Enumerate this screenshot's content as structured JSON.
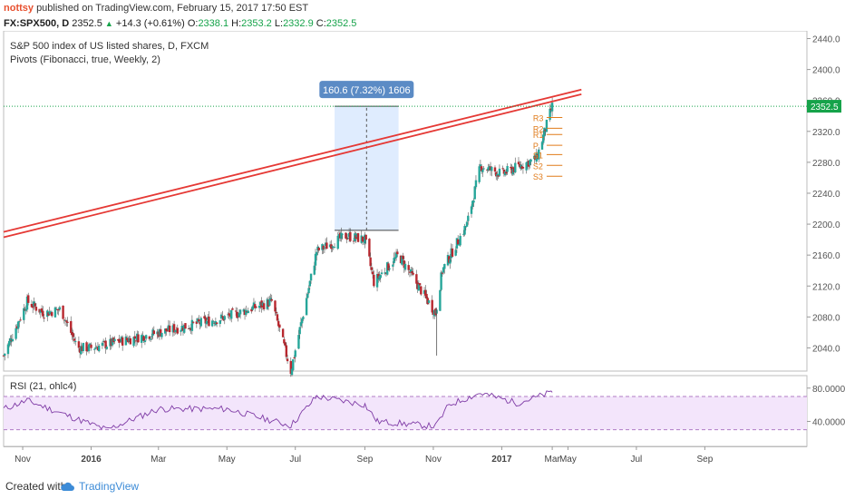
{
  "header": {
    "username": "nottsy",
    "published_text": "published on TradingView.com, February 15, 2017 17:50 EST"
  },
  "quote": {
    "symbol": "FX:SPX500, D",
    "last": "2352.5",
    "change": "+14.3 (+0.61%)",
    "open_label": "O:",
    "open": "2338.1",
    "high_label": "H:",
    "high": "2353.2",
    "low_label": "L:",
    "low": "2332.9",
    "close_label": "C:",
    "close": "2352.5"
  },
  "legend": {
    "title": "S&P 500 index of US listed shares, D, FXCM",
    "pivots": "Pivots (Fibonacci, true, Weekly, 2)",
    "rsi": "RSI (21, ohlc4)"
  },
  "measure": {
    "label": "160.6 (7.32%) 1606"
  },
  "price_axis": {
    "ticks": [
      "2440.0",
      "2400.0",
      "2360.0",
      "2320.0",
      "2280.0",
      "2240.0",
      "2200.0",
      "2160.0",
      "2120.0",
      "2080.0",
      "2040.0"
    ],
    "last_label": "2352.5"
  },
  "rsi_axis": {
    "ticks": [
      "80.0000",
      "40.0000"
    ]
  },
  "time_axis": {
    "ticks": [
      {
        "label": "Nov",
        "bold": false
      },
      {
        "label": "2016",
        "bold": true
      },
      {
        "label": "Mar",
        "bold": false
      },
      {
        "label": "May",
        "bold": false
      },
      {
        "label": "Jul",
        "bold": false
      },
      {
        "label": "Sep",
        "bold": false
      },
      {
        "label": "Nov",
        "bold": false
      },
      {
        "label": "2017",
        "bold": true
      },
      {
        "label": "Mar",
        "bold": false
      },
      {
        "label": "May",
        "bold": false
      },
      {
        "label": "Jul",
        "bold": false
      },
      {
        "label": "Sep",
        "bold": false
      }
    ]
  },
  "pivot_labels": [
    "R3",
    "R2",
    "R1",
    "P",
    "S1",
    "S2",
    "S3"
  ],
  "footer": {
    "created": "Created with",
    "brand": "TradingView"
  },
  "colors": {
    "up": "#26a69a",
    "down": "#b8282f",
    "trendline": "#e53935",
    "measure_fill": "#dbeafe",
    "measure_label_bg": "#5b8bc5",
    "rsi_line": "#7e3aa5",
    "rsi_band": "#f3e5fb",
    "pivot": "#e07b1a",
    "last_price": "#16a34a"
  },
  "chart_data": {
    "type": "candlestick",
    "symbol": "FX:SPX500",
    "timeframe": "D",
    "ylim": [
      2010,
      2450
    ],
    "last_price": 2352.5,
    "x_dates": [
      "2015-10-15",
      "2015-11-01",
      "2016-01-01",
      "2016-03-01",
      "2016-05-01",
      "2016-07-01",
      "2016-09-01",
      "2016-11-01",
      "2017-01-01",
      "2017-02-15",
      "2017-03-01",
      "2017-05-01",
      "2017-07-01",
      "2017-09-01",
      "2017-09-30"
    ],
    "close_path": [
      {
        "date": "2015-10-15",
        "close": 2030
      },
      {
        "date": "2015-11-05",
        "close": 2100
      },
      {
        "date": "2015-11-20",
        "close": 2085
      },
      {
        "date": "2015-12-05",
        "close": 2090
      },
      {
        "date": "2015-12-20",
        "close": 2040
      },
      {
        "date": "2016-01-01",
        "close": 2040
      },
      {
        "date": "2016-05-01",
        "close": 2080
      },
      {
        "date": "2016-06-10",
        "close": 2100
      },
      {
        "date": "2016-06-27",
        "close": 2010
      },
      {
        "date": "2016-07-20",
        "close": 2165
      },
      {
        "date": "2016-08-15",
        "close": 2185
      },
      {
        "date": "2016-09-01",
        "close": 2180
      },
      {
        "date": "2016-09-09",
        "close": 2125
      },
      {
        "date": "2016-10-01",
        "close": 2160
      },
      {
        "date": "2016-11-03",
        "close": 2085
      },
      {
        "date": "2016-11-09",
        "close": 2140
      },
      {
        "date": "2016-12-01",
        "close": 2200
      },
      {
        "date": "2016-12-13",
        "close": 2275
      },
      {
        "date": "2017-01-01",
        "close": 2265
      },
      {
        "date": "2017-02-01",
        "close": 2285
      },
      {
        "date": "2017-02-15",
        "close": 2352.5
      }
    ],
    "trendlines": [
      {
        "from": {
          "date": "2015-10-15",
          "price": 2190
        },
        "to": {
          "date": "2017-03-13",
          "price": 2374
        }
      },
      {
        "from": {
          "date": "2015-10-15",
          "price": 2183
        },
        "to": {
          "date": "2017-03-13",
          "price": 2368
        }
      }
    ],
    "measure": {
      "from_date": "2016-08-05",
      "to_date": "2016-10-01",
      "from_price": 2192,
      "to_price": 2352.5,
      "change": 160.6,
      "percent": 7.32,
      "bars": 1606
    },
    "pivots": [
      {
        "label": "R3",
        "value": 2338
      },
      {
        "label": "R2",
        "value": 2324
      },
      {
        "label": "R1",
        "value": 2316
      },
      {
        "label": "P",
        "value": 2302
      },
      {
        "label": "S1",
        "value": 2290
      },
      {
        "label": "S2",
        "value": 2276
      },
      {
        "label": "S3",
        "value": 2262
      }
    ],
    "rsi": {
      "period": 21,
      "source": "ohlc4",
      "bands": [
        70,
        30
      ],
      "ylim": [
        10,
        95
      ],
      "values": [
        {
          "date": "2015-10-15",
          "value": 55
        },
        {
          "date": "2015-11-05",
          "value": 65
        },
        {
          "date": "2015-12-15",
          "value": 45
        },
        {
          "date": "2016-01-15",
          "value": 30
        },
        {
          "date": "2016-03-01",
          "value": 55
        },
        {
          "date": "2016-05-01",
          "value": 55
        },
        {
          "date": "2016-06-27",
          "value": 35
        },
        {
          "date": "2016-07-20",
          "value": 70
        },
        {
          "date": "2016-09-01",
          "value": 60
        },
        {
          "date": "2016-09-12",
          "value": 40
        },
        {
          "date": "2016-11-03",
          "value": 34
        },
        {
          "date": "2016-11-15",
          "value": 60
        },
        {
          "date": "2016-12-13",
          "value": 74
        },
        {
          "date": "2017-01-15",
          "value": 62
        },
        {
          "date": "2017-02-15",
          "value": 75
        }
      ]
    }
  }
}
